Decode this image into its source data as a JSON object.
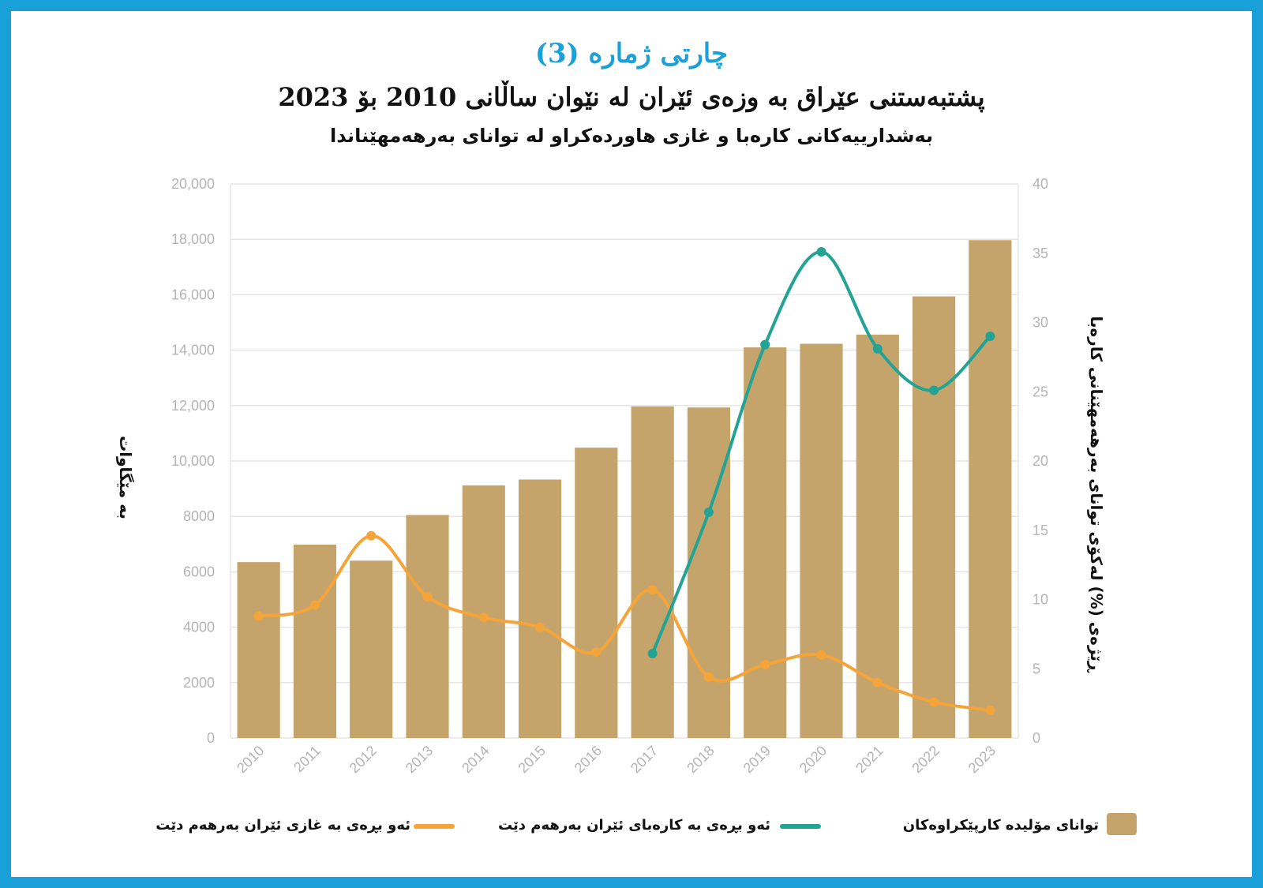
{
  "header": {
    "label": "چارتی ژمارە (3)",
    "title": "پشتبەستنی عێراق بە وزەی ئێران لە نێوان ساڵانی 2010 بۆ 2023",
    "subtitle": "بەشدارییەکانی کارەبا و غازی هاوردەکراو لە توانای بەرهەمهێناندا"
  },
  "colors": {
    "bar": "#c4a46b",
    "electricity": "#23a394",
    "gas": "#f5a43a",
    "grid": "#e6e6e6",
    "frame": "#1aa0d8"
  },
  "chart_data": {
    "type": "bar",
    "categories": [
      "2010",
      "2011",
      "2012",
      "2013",
      "2014",
      "2015",
      "2016",
      "2017",
      "2018",
      "2019",
      "2020",
      "2021",
      "2022",
      "2023"
    ],
    "ylim_left": [
      0,
      20000
    ],
    "ylim_right": [
      0,
      40
    ],
    "yticks_left": [
      "0",
      "2000",
      "4000",
      "6000",
      "8000",
      "10,000",
      "12,000",
      "14,000",
      "16,000",
      "18,000",
      "20,000"
    ],
    "yticks_right": [
      "0",
      "5",
      "10",
      "15",
      "20",
      "25",
      "30",
      "35",
      "40"
    ],
    "ylabel_left": "بە مێگاوات",
    "ylabel_right": "ڕێژەی (%) لەکۆی توانای بەرهەمهێنانی کارەبا",
    "grid": true,
    "legend_position": "bottom",
    "series": [
      {
        "name": "توانای مۆلیدە کارپێکراوەکان",
        "type": "bar",
        "axis": "left",
        "values": [
          6350,
          6980,
          6400,
          8050,
          9120,
          9330,
          10480,
          11970,
          11930,
          14100,
          14230,
          14560,
          15940,
          17970
        ]
      },
      {
        "name": "ئەو بڕەی بە کارەبای ئێران بەرهەم دێت",
        "type": "line",
        "axis": "right",
        "start_index": 7,
        "values": [
          null,
          null,
          null,
          null,
          null,
          null,
          null,
          6.1,
          16.3,
          28.4,
          35.1,
          28.1,
          25.1,
          29.0
        ]
      },
      {
        "name": "ئەو بڕەی بە غازی ئێران بەرهەم دێت",
        "type": "line",
        "axis": "right",
        "start_index": 0,
        "values": [
          8.8,
          9.6,
          14.6,
          10.2,
          8.7,
          8.0,
          6.2,
          10.7,
          4.4,
          5.3,
          6.0,
          4.0,
          2.6,
          2.0
        ]
      }
    ]
  }
}
